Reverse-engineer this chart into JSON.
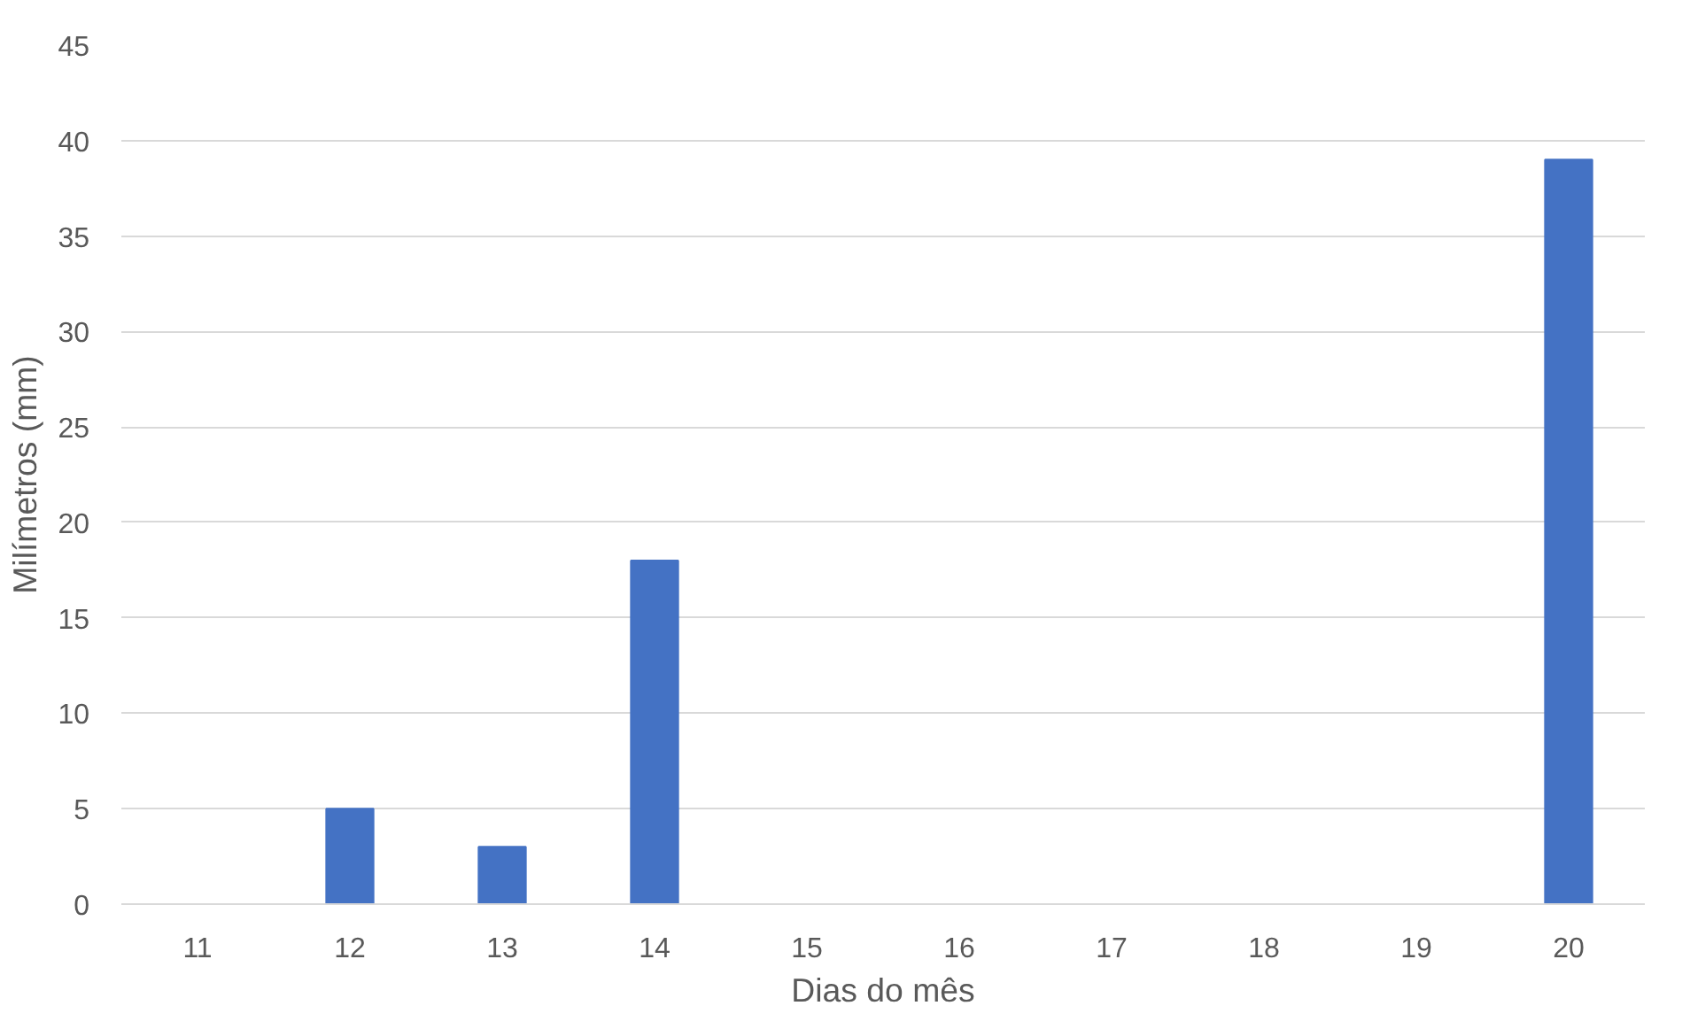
{
  "chart_data": {
    "type": "bar",
    "xlabel": "Dias do mês",
    "ylabel": "Milímetros (mm)",
    "categories": [
      "11",
      "12",
      "13",
      "14",
      "15",
      "16",
      "17",
      "18",
      "19",
      "20"
    ],
    "values": [
      0,
      5,
      3,
      18,
      0,
      0,
      0,
      0,
      0,
      39
    ],
    "color": "#4472c4",
    "ylim": [
      0,
      45
    ],
    "yticks": [
      0,
      5,
      10,
      15,
      20,
      25,
      30,
      35,
      40,
      45
    ],
    "grid": "y"
  }
}
